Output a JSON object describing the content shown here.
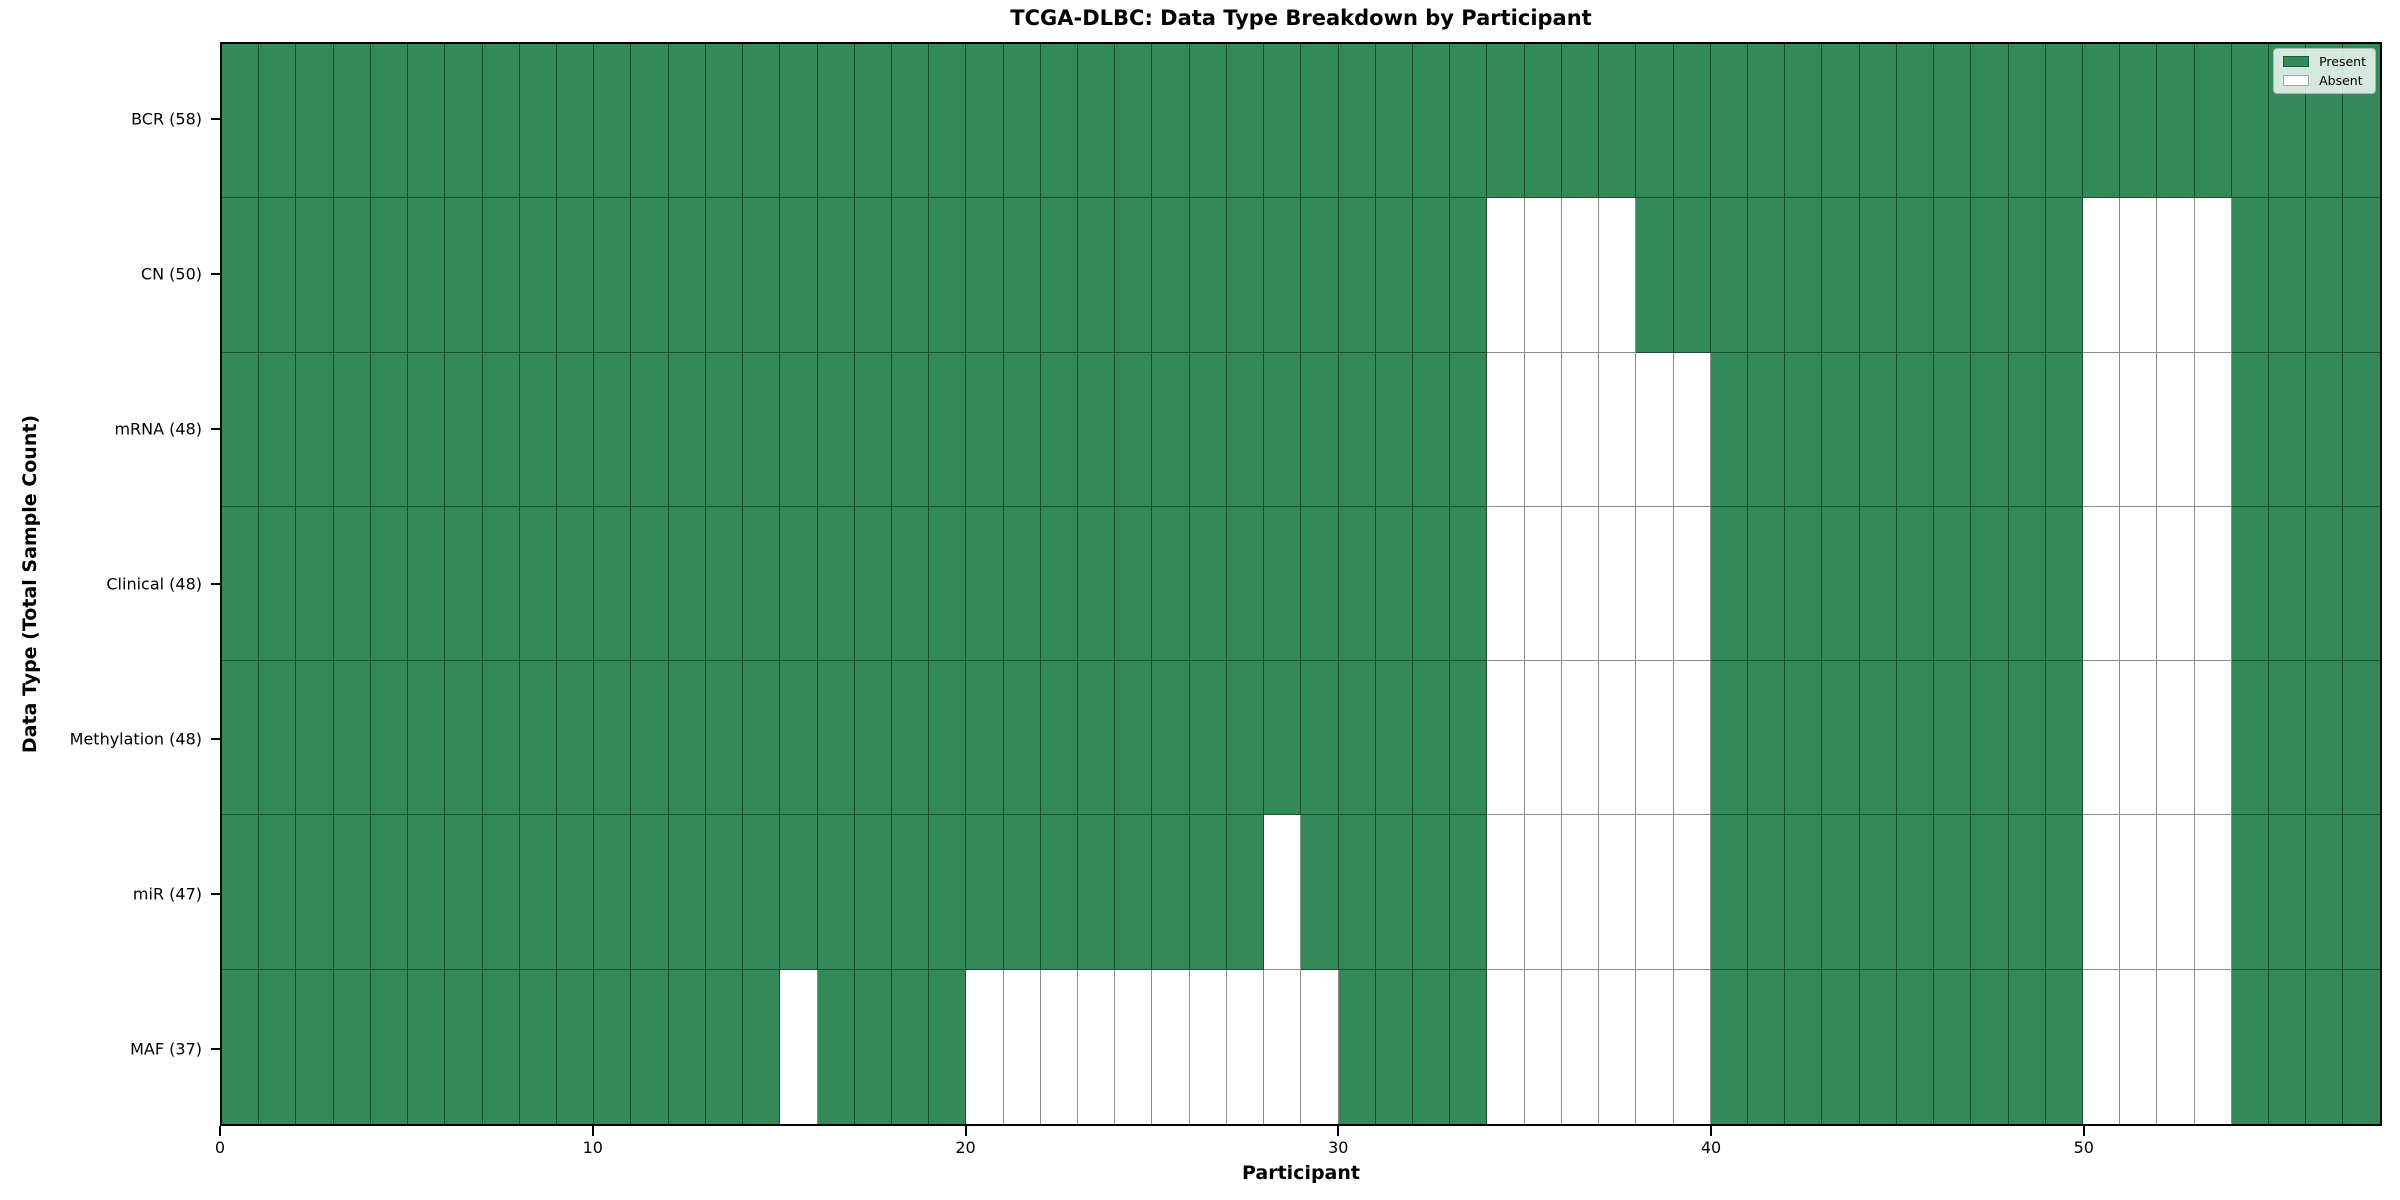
{
  "chart_data": {
    "type": "heatmap",
    "title": "TCGA-DLBC: Data Type Breakdown by Participant",
    "xlabel": "Participant",
    "ylabel": "Data Type (Total Sample Count)",
    "n_participants": 58,
    "x_range": [
      0,
      58
    ],
    "x_ticks": [
      0,
      10,
      20,
      30,
      40,
      50
    ],
    "grid": true,
    "legend_position": "upper right",
    "legend": [
      {
        "label": "Present",
        "color": "#318a58"
      },
      {
        "label": "Absent",
        "color": "#ffffff"
      }
    ],
    "rows": [
      {
        "label": "BCR (58)",
        "total": 58,
        "absent_participants": []
      },
      {
        "label": "CN (50)",
        "total": 50,
        "absent_participants": [
          34,
          35,
          36,
          37,
          50,
          51,
          52,
          53
        ]
      },
      {
        "label": "mRNA (48)",
        "total": 48,
        "absent_participants": [
          34,
          35,
          36,
          37,
          38,
          39,
          50,
          51,
          52,
          53
        ]
      },
      {
        "label": "Clinical (48)",
        "total": 48,
        "absent_participants": [
          34,
          35,
          36,
          37,
          38,
          39,
          50,
          51,
          52,
          53
        ]
      },
      {
        "label": "Methylation (48)",
        "total": 48,
        "absent_participants": [
          34,
          35,
          36,
          37,
          38,
          39,
          50,
          51,
          52,
          53
        ]
      },
      {
        "label": "miR (47)",
        "total": 47,
        "absent_participants": [
          28,
          34,
          35,
          36,
          37,
          38,
          39,
          50,
          51,
          52,
          53
        ]
      },
      {
        "label": "MAF (37)",
        "total": 37,
        "absent_participants": [
          15,
          20,
          21,
          22,
          23,
          24,
          25,
          26,
          27,
          28,
          29,
          34,
          35,
          36,
          37,
          38,
          39,
          50,
          51,
          52,
          53
        ]
      }
    ],
    "colors": {
      "present": "#318a58",
      "absent": "#ffffff",
      "cell_edge": "rgba(0,0,0,0.45)",
      "spine": "#000000",
      "background": "#ffffff"
    }
  }
}
